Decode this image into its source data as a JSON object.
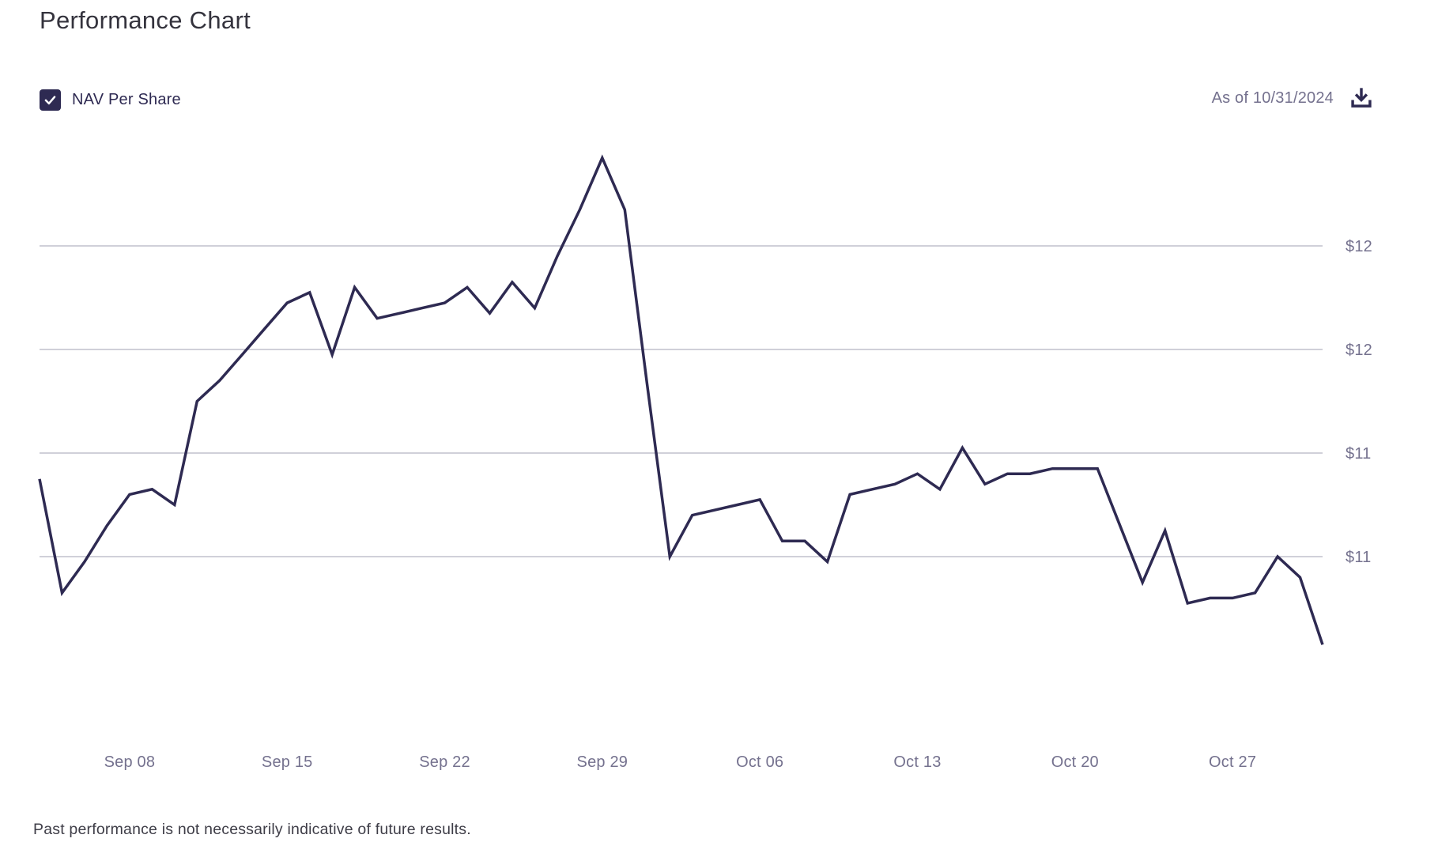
{
  "page": {
    "title": "Performance Chart",
    "footer_disclaimer": "Past performance is not necessarily indicative of future results."
  },
  "controls": {
    "series_toggle": {
      "label": "NAV Per Share",
      "checked": true
    },
    "as_of_label": "As of 10/31/2024",
    "download_icon": "download-icon"
  },
  "chart_data": {
    "type": "line",
    "title": "Performance Chart",
    "series_name": "NAV Per Share",
    "x": [
      "Sep 04",
      "Sep 05",
      "Sep 06",
      "Sep 07",
      "Sep 08",
      "Sep 09",
      "Sep 10",
      "Sep 11",
      "Sep 12",
      "Sep 13",
      "Sep 14",
      "Sep 15",
      "Sep 16",
      "Sep 17",
      "Sep 18",
      "Sep 19",
      "Sep 20",
      "Sep 21",
      "Sep 22",
      "Sep 23",
      "Sep 24",
      "Sep 25",
      "Sep 26",
      "Sep 27",
      "Sep 28",
      "Sep 29",
      "Sep 30",
      "Oct 01",
      "Oct 02",
      "Oct 03",
      "Oct 04",
      "Oct 05",
      "Oct 06",
      "Oct 07",
      "Oct 08",
      "Oct 09",
      "Oct 10",
      "Oct 11",
      "Oct 12",
      "Oct 13",
      "Oct 14",
      "Oct 15",
      "Oct 16",
      "Oct 17",
      "Oct 18",
      "Oct 19",
      "Oct 20",
      "Oct 21",
      "Oct 22",
      "Oct 23",
      "Oct 24",
      "Oct 25",
      "Oct 26",
      "Oct 27",
      "Oct 28",
      "Oct 29",
      "Oct 30",
      "Oct 31"
    ],
    "values": [
      11.35,
      11.13,
      11.19,
      11.26,
      11.32,
      11.33,
      11.3,
      11.5,
      11.54,
      11.59,
      11.64,
      11.69,
      11.71,
      11.59,
      11.72,
      11.66,
      11.67,
      11.68,
      11.69,
      11.72,
      11.67,
      11.73,
      11.68,
      11.78,
      11.87,
      11.97,
      11.87,
      11.53,
      11.2,
      11.28,
      11.29,
      11.3,
      11.31,
      11.23,
      11.23,
      11.19,
      11.32,
      11.33,
      11.34,
      11.36,
      11.33,
      11.41,
      11.34,
      11.36,
      11.36,
      11.37,
      11.37,
      11.37,
      11.26,
      11.15,
      11.25,
      11.11,
      11.12,
      11.12,
      11.13,
      11.2,
      11.16,
      11.03
    ],
    "x_tick_labels": [
      "Sep 08",
      "Sep 15",
      "Sep 22",
      "Sep 29",
      "Oct 06",
      "Oct 13",
      "Oct 20",
      "Oct 27"
    ],
    "y_axis": {
      "tick_labels": [
        "$12",
        "$12",
        "$11",
        "$11"
      ],
      "gridline_values": [
        11.8,
        11.6,
        11.4,
        11.2
      ],
      "currency_prefix": "$"
    },
    "ylim": [
      10.95,
      12.05
    ],
    "grid": "horizontal-only",
    "legend_position": "top-left-as-checkbox",
    "line_color": "#2e2a52",
    "gridline_color": "#b4b3c2",
    "axis_label_color": "#74718e"
  }
}
